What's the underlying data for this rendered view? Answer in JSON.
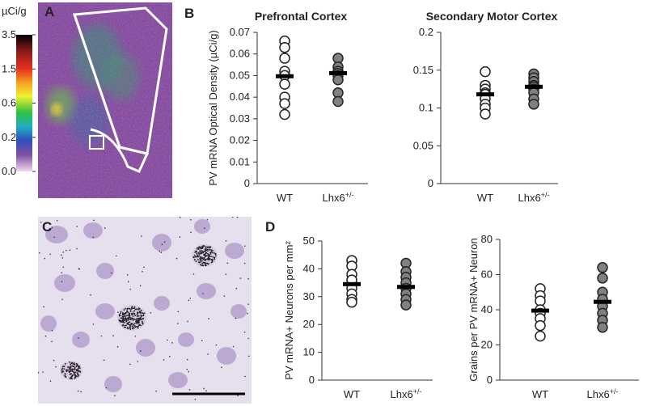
{
  "panels": [
    "A",
    "B",
    "C",
    "D"
  ],
  "colorbar": {
    "label": "µCi/g",
    "ticks": [
      3.5,
      1.5,
      0.6,
      0.2,
      {
        "value": 0,
        "label": "0.0"
      }
    ]
  },
  "chart_data": [
    {
      "type": "strip",
      "title": "Prefrontal Cortex",
      "y_label": "PV mRNA Optical Density (µCi/g)",
      "categories": [
        "WT",
        "Lhx6+/-"
      ],
      "groups": [
        {
          "color": "#ffffff",
          "values": [
            0.066,
            0.063,
            0.058,
            0.052,
            0.05,
            0.046,
            0.04,
            0.037,
            0.032
          ],
          "mean": 0.0497
        },
        {
          "color": "#808080",
          "values": [
            0.058,
            0.054,
            0.052,
            0.051,
            0.05,
            0.048,
            0.042,
            0.038
          ],
          "mean": 0.0511
        }
      ],
      "ylim": [
        0,
        0.07
      ],
      "yticks": [
        0,
        0.01,
        0.02,
        0.03,
        0.04,
        0.05,
        0.06,
        0.07
      ]
    },
    {
      "type": "strip",
      "title": "Secondary Motor Cortex",
      "categories": [
        "WT",
        "Lhx6+/-"
      ],
      "groups": [
        {
          "color": "#ffffff",
          "values": [
            0.148,
            0.13,
            0.125,
            0.12,
            0.118,
            0.112,
            0.105,
            0.1,
            0.092
          ],
          "mean": 0.118
        },
        {
          "color": "#808080",
          "values": [
            0.145,
            0.14,
            0.135,
            0.13,
            0.128,
            0.125,
            0.12,
            0.112,
            0.105
          ],
          "mean": 0.128
        }
      ],
      "ylim": [
        0,
        0.2
      ],
      "yticks": [
        0,
        0.05,
        0.1,
        0.15,
        0.2
      ]
    },
    {
      "type": "strip",
      "y_label": "PV mRNA+ Neurons per mm²",
      "categories": [
        "WT",
        "Lhx6+/-"
      ],
      "groups": [
        {
          "color": "#ffffff",
          "values": [
            43,
            41,
            38,
            36,
            33,
            31,
            29,
            28
          ],
          "mean": 34.5
        },
        {
          "color": "#808080",
          "values": [
            42,
            39,
            37,
            35,
            33,
            31,
            29,
            27
          ],
          "mean": 33.5
        }
      ],
      "ylim": [
        0,
        50
      ],
      "yticks": [
        0,
        10,
        20,
        30,
        40,
        50
      ]
    },
    {
      "type": "strip",
      "y_label": "Grains per PV mRNA+ Neuron",
      "categories": [
        "WT",
        "Lhx6+/-"
      ],
      "groups": [
        {
          "color": "#ffffff",
          "values": [
            52,
            48,
            45,
            40,
            38,
            35,
            31,
            25
          ],
          "mean": 39.5
        },
        {
          "color": "#808080",
          "values": [
            64,
            58,
            50,
            46,
            42,
            38,
            34,
            30
          ],
          "mean": 44.5
        }
      ],
      "ylim": [
        0,
        80
      ],
      "yticks": [
        0,
        20,
        40,
        60,
        80
      ]
    }
  ]
}
